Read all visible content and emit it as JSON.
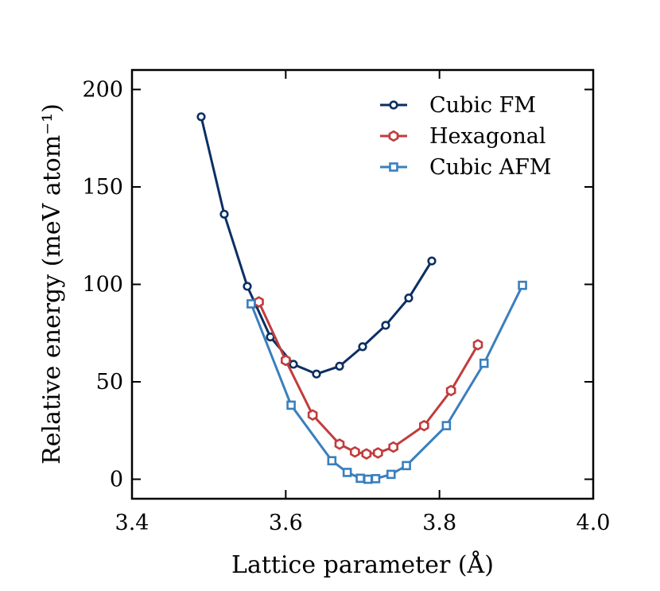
{
  "chart_data": {
    "type": "line",
    "title": "",
    "xlabel": "Lattice parameter (Å)",
    "ylabel": "Relative energy (meV atom⁻¹)",
    "xlim": [
      3.4,
      4.0
    ],
    "ylim": [
      -10,
      210
    ],
    "xticks": [
      3.4,
      3.6,
      3.8,
      4.0
    ],
    "xtick_labels": [
      "3.4",
      "3.6",
      "3.8",
      "4.0"
    ],
    "yticks": [
      0,
      50,
      100,
      150,
      200
    ],
    "ytick_labels": [
      "0",
      "50",
      "100",
      "150",
      "200"
    ],
    "legend_position": "top-right",
    "grid": false,
    "series": [
      {
        "name": "Cubic FM",
        "color": "#0b2f63",
        "marker": "circle",
        "x": [
          3.49,
          3.52,
          3.55,
          3.58,
          3.61,
          3.64,
          3.67,
          3.7,
          3.73,
          3.76,
          3.79
        ],
        "y": [
          186,
          136,
          99,
          73,
          59,
          54,
          58,
          68,
          79,
          93,
          112
        ]
      },
      {
        "name": "Hexagonal",
        "color": "#c13c3c",
        "marker": "hexagon",
        "x": [
          3.565,
          3.6,
          3.635,
          3.67,
          3.69,
          3.705,
          3.72,
          3.74,
          3.78,
          3.815,
          3.85
        ],
        "y": [
          91,
          61,
          33,
          18,
          14,
          13,
          13.5,
          16.5,
          27.5,
          45.5,
          69
        ]
      },
      {
        "name": "Cubic AFM",
        "color": "#3a7fbd",
        "marker": "square",
        "x": [
          3.555,
          3.607,
          3.66,
          3.68,
          3.697,
          3.707,
          3.717,
          3.737,
          3.757,
          3.809,
          3.858,
          3.908
        ],
        "y": [
          90,
          38,
          9.5,
          3.5,
          0.5,
          0,
          0.3,
          2.5,
          7,
          27.5,
          59.5,
          99.5
        ]
      }
    ]
  }
}
